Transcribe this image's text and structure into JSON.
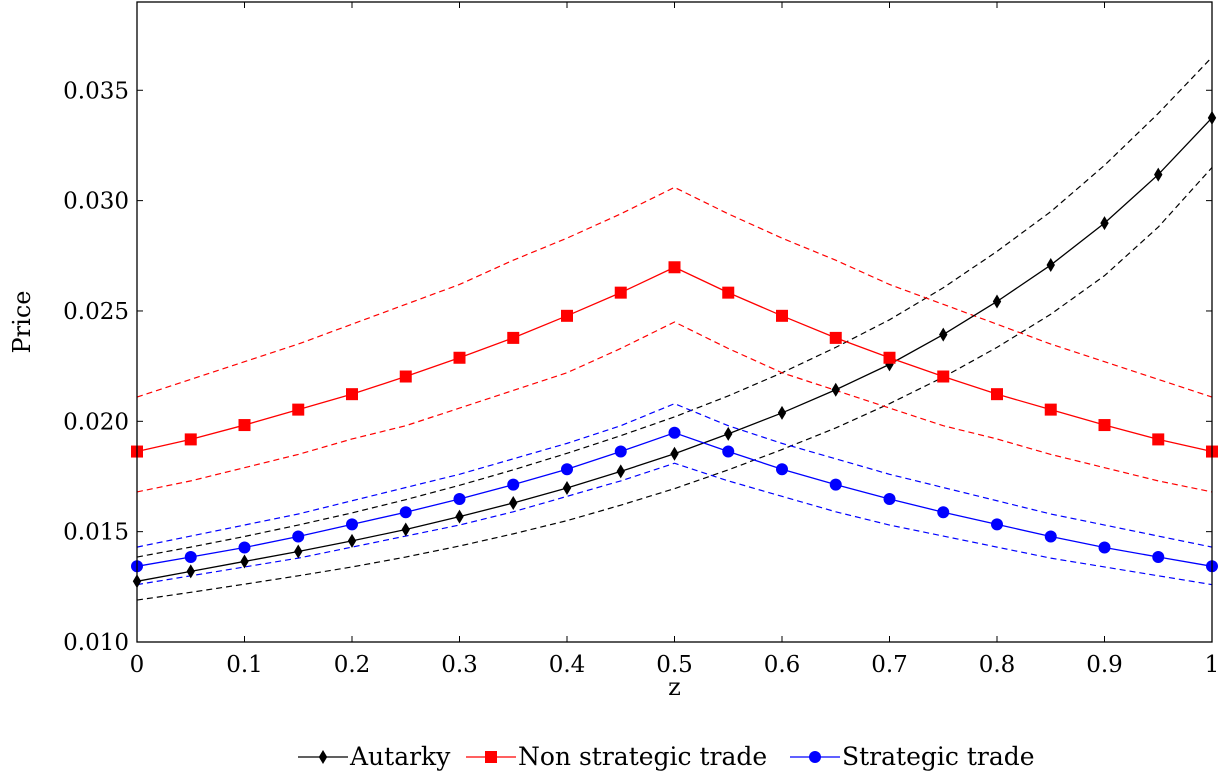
{
  "chart_data": {
    "type": "line",
    "xlabel": "z",
    "ylabel": "Price",
    "xlim": [
      0,
      1
    ],
    "ylim": [
      0.01,
      0.039
    ],
    "x_ticks": [
      0,
      0.1,
      0.2,
      0.3,
      0.4,
      0.5,
      0.6,
      0.7,
      0.8,
      0.9,
      1
    ],
    "x_tick_labels": [
      "0",
      "0.1",
      "0.2",
      "0.3",
      "0.4",
      "0.5",
      "0.6",
      "0.7",
      "0.8",
      "0.9",
      "1"
    ],
    "y_ticks": [
      0.01,
      0.015,
      0.02,
      0.025,
      0.03,
      0.035
    ],
    "y_tick_labels": [
      "0.010",
      "0.015",
      "0.020",
      "0.025",
      "0.030",
      "0.035"
    ],
    "grid": false,
    "legend_position": "bottom-center",
    "x": [
      0,
      0.05,
      0.1,
      0.15,
      0.2,
      0.25,
      0.3,
      0.35,
      0.4,
      0.45,
      0.5,
      0.55,
      0.6,
      0.65,
      0.7,
      0.75,
      0.8,
      0.85,
      0.9,
      0.95,
      1
    ],
    "series": [
      {
        "name": "Autarky",
        "color": "#000000",
        "marker": "diamond",
        "values": [
          0.01275,
          0.0132,
          0.01365,
          0.0141,
          0.01458,
          0.0151,
          0.01568,
          0.0163,
          0.01698,
          0.01773,
          0.01853,
          0.01943,
          0.02038,
          0.02143,
          0.02258,
          0.02393,
          0.02543,
          0.02708,
          0.02898,
          0.03118,
          0.03375
        ],
        "band_upper": [
          0.01385,
          0.0143,
          0.01478,
          0.0153,
          0.01585,
          0.01645,
          0.0171,
          0.0178,
          0.01855,
          0.01935,
          0.0202,
          0.02115,
          0.0222,
          0.02335,
          0.0246,
          0.02605,
          0.0277,
          0.0295,
          0.0316,
          0.03395,
          0.0365
        ],
        "band_lower": [
          0.0119,
          0.01225,
          0.01262,
          0.013,
          0.0134,
          0.01385,
          0.01435,
          0.0149,
          0.0155,
          0.0162,
          0.01695,
          0.0178,
          0.01872,
          0.0197,
          0.0208,
          0.022,
          0.02335,
          0.02485,
          0.0266,
          0.0288,
          0.0315
        ]
      },
      {
        "name": "Non strategic trade",
        "color": "#ff0000",
        "marker": "square",
        "values": [
          0.01863,
          0.01918,
          0.01983,
          0.02053,
          0.02123,
          0.02203,
          0.02288,
          0.02378,
          0.02478,
          0.02583,
          0.02698,
          0.02583,
          0.02478,
          0.02378,
          0.02288,
          0.02203,
          0.02123,
          0.02053,
          0.01983,
          0.01918,
          0.01863
        ],
        "band_upper": [
          0.0211,
          0.0219,
          0.0227,
          0.0235,
          0.0244,
          0.0253,
          0.0262,
          0.0273,
          0.0283,
          0.0294,
          0.0306,
          0.0294,
          0.0283,
          0.0273,
          0.0262,
          0.0253,
          0.0244,
          0.0235,
          0.0227,
          0.0219,
          0.0211
        ],
        "band_lower": [
          0.0168,
          0.0173,
          0.0179,
          0.0185,
          0.0192,
          0.0198,
          0.0206,
          0.0214,
          0.0222,
          0.0233,
          0.0245,
          0.0233,
          0.0222,
          0.0214,
          0.0206,
          0.0198,
          0.0192,
          0.0185,
          0.0179,
          0.0173,
          0.0168
        ]
      },
      {
        "name": "Strategic trade",
        "color": "#0000ff",
        "marker": "circle",
        "values": [
          0.01343,
          0.01385,
          0.01428,
          0.01478,
          0.01533,
          0.01588,
          0.01648,
          0.01713,
          0.01783,
          0.01863,
          0.01948,
          0.01863,
          0.01783,
          0.01713,
          0.01648,
          0.01588,
          0.01533,
          0.01478,
          0.01428,
          0.01385,
          0.01343
        ],
        "band_upper": [
          0.0143,
          0.0148,
          0.0153,
          0.0158,
          0.0164,
          0.017,
          0.0176,
          0.0183,
          0.019,
          0.0198,
          0.0208,
          0.0198,
          0.019,
          0.0183,
          0.0176,
          0.017,
          0.0164,
          0.0158,
          0.0153,
          0.0148,
          0.0143
        ],
        "band_lower": [
          0.0126,
          0.013,
          0.0134,
          0.0138,
          0.0143,
          0.0148,
          0.0153,
          0.0159,
          0.0166,
          0.0173,
          0.0181,
          0.0173,
          0.0166,
          0.0159,
          0.0153,
          0.0148,
          0.0143,
          0.0138,
          0.0134,
          0.013,
          0.0126
        ]
      }
    ]
  }
}
